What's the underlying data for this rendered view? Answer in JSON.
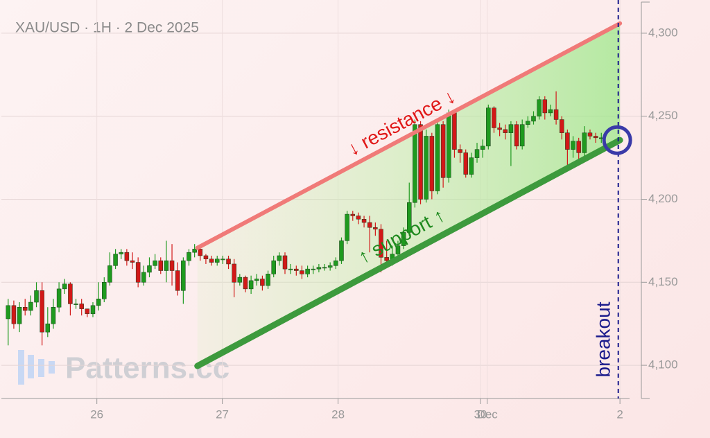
{
  "chart_data": {
    "type": "candlestick",
    "title": "XAU/USD · 1H · 2 Dec 2025",
    "watermark": "Patterns.cc",
    "xlim": [
      -1.2,
      110
    ],
    "ylim": [
      4080,
      4320
    ],
    "xticks": [
      {
        "value": 15.7,
        "label": "26"
      },
      {
        "value": 37.9,
        "label": "27"
      },
      {
        "value": 58.4,
        "label": "28"
      },
      {
        "value": 83.6,
        "label": "30"
      },
      {
        "value": 84.8,
        "label": "Dec"
      },
      {
        "value": 108.3,
        "label": "2"
      }
    ],
    "yticks": [
      {
        "value": 4100,
        "label": "4,100"
      },
      {
        "value": 4150,
        "label": "4,150"
      },
      {
        "value": 4200,
        "label": "4,200"
      },
      {
        "value": 4250,
        "label": "4,250"
      },
      {
        "value": 4300,
        "label": "4,300"
      }
    ],
    "grid": true,
    "up_color": "#1f9a1f",
    "down_color": "#d21818",
    "open": [
      4128,
      4136,
      4125,
      4135,
      4133,
      4138,
      4145,
      4120,
      4125,
      4135,
      4146,
      4149,
      4137,
      4137,
      4134,
      4131,
      4136,
      4140,
      4150,
      4160,
      4167,
      4168,
      4163,
      4162,
      4150,
      4156,
      4160,
      4163,
      4157,
      4163,
      4157,
      4145,
      4163,
      4168,
      4170,
      4166,
      4164,
      4162,
      4164,
      4164,
      4161,
      4150,
      4153,
      4146,
      4151,
      4152,
      4148,
      4155,
      4163,
      4166,
      4158,
      4158,
      4157,
      4155,
      4158,
      4158,
      4159,
      4159,
      4160,
      4163,
      4175,
      4191,
      4190,
      4188,
      4186,
      4183,
      4182,
      4165,
      4163,
      4167,
      4172,
      4180,
      4198,
      4245,
      4200,
      4238,
      4205,
      4245,
      4213,
      4252,
      4230,
      4228,
      4215,
      4225,
      4230,
      4232,
      4255,
      4243,
      4242,
      4240,
      4245,
      4232,
      4245,
      4247,
      4250,
      4260,
      4252,
      4254,
      4248,
      4240,
      4230,
      4235,
      4228,
      4240,
      4238,
      4237
    ],
    "high": [
      4140,
      4139,
      4138,
      4140,
      4142,
      4150,
      4150,
      4135,
      4140,
      4150,
      4152,
      4150,
      4140,
      4140,
      4134,
      4138,
      4150,
      4153,
      4168,
      4170,
      4170,
      4170,
      4168,
      4165,
      4160,
      4165,
      4167,
      4165,
      4175,
      4173,
      4162,
      4165,
      4170,
      4173,
      4171,
      4167,
      4166,
      4166,
      4166,
      4166,
      4164,
      4155,
      4154,
      4154,
      4155,
      4154,
      4157,
      4166,
      4168,
      4168,
      4161,
      4160,
      4160,
      4160,
      4160,
      4161,
      4161,
      4162,
      4165,
      4177,
      4193,
      4193,
      4192,
      4190,
      4190,
      4186,
      4185,
      4175,
      4172,
      4175,
      4183,
      4210,
      4248,
      4247,
      4242,
      4240,
      4247,
      4247,
      4254,
      4253,
      4233,
      4230,
      4228,
      4234,
      4236,
      4257,
      4256,
      4246,
      4245,
      4247,
      4247,
      4248,
      4250,
      4253,
      4262,
      4262,
      4257,
      4265,
      4250,
      4242,
      4238,
      4237,
      4244,
      4242,
      4240,
      4240
    ],
    "low": [
      4112,
      4122,
      4120,
      4130,
      4130,
      4135,
      4112,
      4117,
      4122,
      4132,
      4143,
      4130,
      4134,
      4130,
      4129,
      4129,
      4133,
      4138,
      4148,
      4158,
      4164,
      4160,
      4158,
      4147,
      4148,
      4153,
      4158,
      4155,
      4150,
      4148,
      4142,
      4137,
      4160,
      4165,
      4163,
      4161,
      4160,
      4160,
      4161,
      4158,
      4141,
      4148,
      4144,
      4143,
      4148,
      4145,
      4146,
      4153,
      4160,
      4155,
      4155,
      4154,
      4152,
      4153,
      4155,
      4156,
      4157,
      4157,
      4158,
      4161,
      4173,
      4187,
      4185,
      4183,
      4168,
      4178,
      4156,
      4160,
      4160,
      4165,
      4170,
      4178,
      4195,
      4197,
      4198,
      4200,
      4203,
      4207,
      4210,
      4225,
      4222,
      4213,
      4213,
      4222,
      4225,
      4230,
      4240,
      4238,
      4236,
      4220,
      4230,
      4230,
      4243,
      4245,
      4248,
      4248,
      4250,
      4245,
      4236,
      4220,
      4225,
      4222,
      4226,
      4236,
      4234,
      4234
    ],
    "close": [
      4136,
      4125,
      4135,
      4133,
      4138,
      4145,
      4120,
      4125,
      4135,
      4146,
      4149,
      4137,
      4137,
      4134,
      4131,
      4136,
      4140,
      4150,
      4160,
      4167,
      4168,
      4163,
      4162,
      4150,
      4156,
      4160,
      4163,
      4157,
      4163,
      4157,
      4145,
      4163,
      4168,
      4170,
      4166,
      4164,
      4162,
      4164,
      4164,
      4161,
      4150,
      4153,
      4146,
      4151,
      4152,
      4148,
      4155,
      4163,
      4166,
      4158,
      4158,
      4157,
      4155,
      4158,
      4158,
      4159,
      4159,
      4160,
      4163,
      4175,
      4191,
      4190,
      4188,
      4186,
      4183,
      4182,
      4165,
      4163,
      4167,
      4172,
      4180,
      4198,
      4245,
      4200,
      4238,
      4205,
      4245,
      4213,
      4252,
      4230,
      4228,
      4215,
      4225,
      4230,
      4232,
      4255,
      4243,
      4242,
      4240,
      4245,
      4232,
      4245,
      4247,
      4250,
      4260,
      4252,
      4254,
      4248,
      4240,
      4230,
      4235,
      4228,
      4240,
      4238,
      4237,
      4237
    ],
    "resistance": {
      "label": "↓ resistance ↓",
      "color": "#f07a78",
      "x": [
        33.5,
        108.3
      ],
      "y": [
        4170.7,
        4305.9
      ]
    },
    "support": {
      "label": "↑ support ↑",
      "color": "#3d9a3d",
      "x": [
        33.5,
        108.3
      ],
      "y": [
        4099.6,
        4235.6
      ]
    },
    "breakout": {
      "label": "breakout",
      "color": "#1a1a8c",
      "x": 108.0
    }
  }
}
